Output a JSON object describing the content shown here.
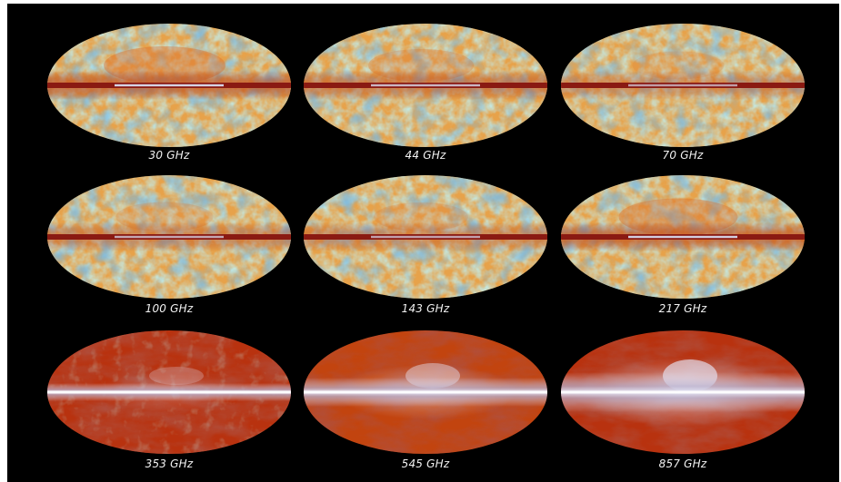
{
  "figure": {
    "panel_background": "#000000",
    "page_background": "#ffffff",
    "maps": [
      {
        "label": "30 GHz",
        "style": "cmb"
      },
      {
        "label": "44 GHz",
        "style": "cmb"
      },
      {
        "label": "70 GHz",
        "style": "cmb"
      },
      {
        "label": "100 GHz",
        "style": "cmb"
      },
      {
        "label": "143 GHz",
        "style": "cmb"
      },
      {
        "label": "217 GHz",
        "style": "cmb"
      },
      {
        "label": "353 GHz",
        "style": "dust"
      },
      {
        "label": "545 GHz",
        "style": "dust"
      },
      {
        "label": "857 GHz",
        "style": "dust"
      }
    ],
    "colors": {
      "cmb_cold": "#2f7fd0",
      "cmb_mid": "#8fc9b8",
      "cmb_warm": "#e7a24a",
      "galactic_plane": "#8a1a12",
      "galactic_core": "#d8dcf0",
      "dust_base": "#b8320f",
      "dust_dark": "#6e140c",
      "dust_bright": "#e8e8f6"
    }
  }
}
